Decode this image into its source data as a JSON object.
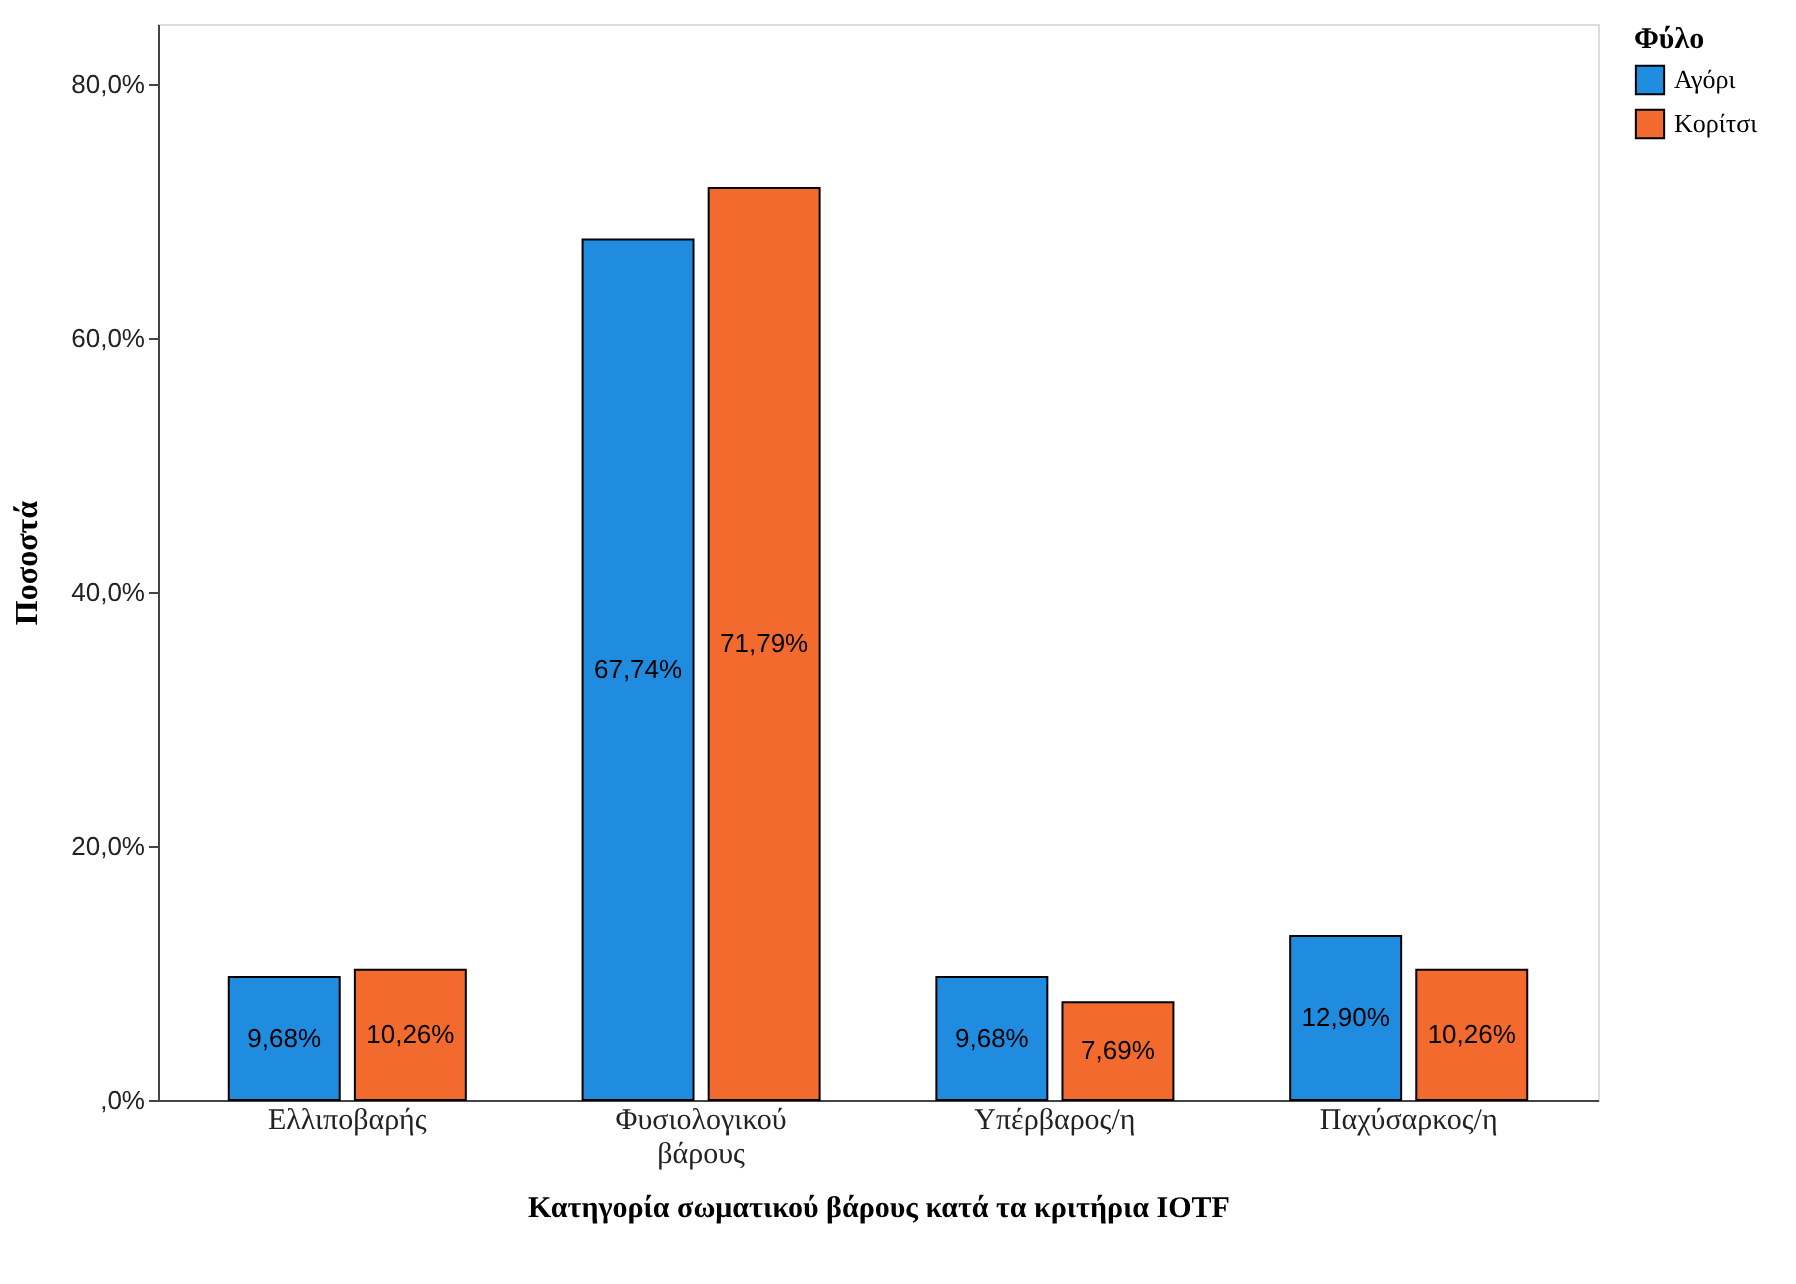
{
  "chart_data": {
    "type": "bar",
    "xlabel": "Κατηγορία σωματικού βάρους κατά τα κριτήρια IOTF",
    "ylabel": "Ποσοστά",
    "legend_title": "Φύλο",
    "legend": "top right",
    "grid": false,
    "categories": [
      "Ελλιποβαρής",
      "Φυσιολογικού βάρους",
      "Υπέρβαρος/η",
      "Παχύσαρκος/η"
    ],
    "ylim": [
      0,
      84.7
    ],
    "yticks": [
      {
        "value": 0,
        "label": ",0%"
      },
      {
        "value": 20,
        "label": "20,0%"
      },
      {
        "value": 40,
        "label": "40,0%"
      },
      {
        "value": 60,
        "label": "60,0%"
      },
      {
        "value": 80,
        "label": "80,0%"
      }
    ],
    "series": [
      {
        "name": "Αγόρι",
        "color": "#1f8ce0",
        "values": [
          9.68,
          67.74,
          9.68,
          12.9
        ],
        "value_labels": [
          "9,68%",
          "67,74%",
          "9,68%",
          "12,90%"
        ]
      },
      {
        "name": "Κορίτσι",
        "color": "#f26a2e",
        "values": [
          10.26,
          71.79,
          7.69,
          10.26
        ],
        "value_labels": [
          "10,26%",
          "71,79%",
          "7,69%",
          "10,26%"
        ]
      }
    ]
  }
}
